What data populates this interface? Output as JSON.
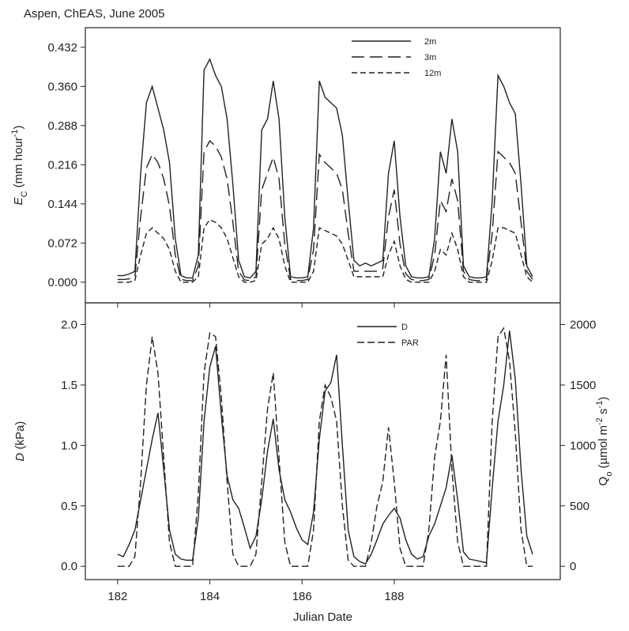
{
  "chart_data": [
    {
      "type": "line",
      "title": "Aspen, ChEAS, June 2005",
      "ylabel": [
        "E",
        "C",
        " (mm hour",
        "-1",
        ")"
      ],
      "xlim": [
        181.3,
        191.6
      ],
      "ylim": [
        -0.038,
        0.468
      ],
      "yticks": [
        {
          "value": 0,
          "label": "0.000"
        },
        0.072,
        0.144,
        0.216,
        0.288,
        {
          "value": 0.36,
          "label": "0.360"
        },
        0.432
      ],
      "legend": "upper right",
      "x": [
        182,
        182.125,
        182.25,
        182.375,
        182.5,
        182.625,
        182.75,
        182.875,
        183,
        183.125,
        183.25,
        183.375,
        183.5,
        183.625,
        183.75,
        183.875,
        184,
        184.125,
        184.25,
        184.375,
        184.5,
        184.625,
        184.75,
        184.875,
        185,
        185.125,
        185.25,
        185.375,
        185.5,
        185.625,
        185.75,
        185.875,
        186,
        186.125,
        186.25,
        186.375,
        186.5,
        186.625,
        186.75,
        186.875,
        187,
        187.125,
        187.25,
        187.375,
        187.5,
        187.625,
        187.75,
        187.875,
        188,
        188.125,
        188.25,
        188.375,
        188.5,
        188.625,
        188.75,
        188.875,
        189,
        189.125,
        189.25,
        189.375,
        189.5,
        189.625,
        189.75,
        189.875,
        190,
        190.125,
        190.25,
        190.375,
        190.5,
        190.625,
        190.75,
        190.875,
        191
      ],
      "series": [
        {
          "name": "2m",
          "color": "#222222",
          "dash": "solid",
          "values": [
            0.012,
            0.012,
            0.015,
            0.02,
            0.2,
            0.33,
            0.36,
            0.32,
            0.28,
            0.22,
            0.08,
            0.012,
            0.008,
            0.008,
            0.05,
            0.39,
            0.41,
            0.38,
            0.36,
            0.3,
            0.18,
            0.04,
            0.01,
            0.008,
            0.02,
            0.28,
            0.3,
            0.37,
            0.3,
            0.12,
            0.01,
            0.008,
            0.008,
            0.01,
            0.1,
            0.37,
            0.34,
            0.33,
            0.32,
            0.27,
            0.15,
            0.04,
            0.03,
            0.035,
            0.03,
            0.035,
            0.04,
            0.2,
            0.26,
            0.12,
            0.03,
            0.01,
            0.008,
            0.008,
            0.01,
            0.08,
            0.24,
            0.2,
            0.3,
            0.24,
            0.03,
            0.01,
            0.008,
            0.008,
            0.01,
            0.15,
            0.38,
            0.36,
            0.33,
            0.31,
            0.18,
            0.03,
            0.01
          ]
        },
        {
          "name": "3m",
          "color": "#222222",
          "dash": "long",
          "values": [
            0.005,
            0.005,
            0.006,
            0.01,
            0.12,
            0.21,
            0.235,
            0.22,
            0.19,
            0.14,
            0.05,
            0.005,
            0.003,
            0.003,
            0.03,
            0.24,
            0.26,
            0.25,
            0.23,
            0.19,
            0.11,
            0.02,
            0.004,
            0.003,
            0.01,
            0.17,
            0.2,
            0.23,
            0.19,
            0.07,
            0.005,
            0.003,
            0.003,
            0.005,
            0.06,
            0.235,
            0.22,
            0.21,
            0.2,
            0.17,
            0.09,
            0.02,
            0.02,
            0.02,
            0.02,
            0.02,
            0.025,
            0.12,
            0.17,
            0.07,
            0.015,
            0.005,
            0.003,
            0.003,
            0.005,
            0.05,
            0.15,
            0.13,
            0.19,
            0.15,
            0.02,
            0.005,
            0.003,
            0.003,
            0.005,
            0.09,
            0.24,
            0.23,
            0.22,
            0.2,
            0.11,
            0.02,
            0.005
          ]
        },
        {
          "name": "12m",
          "color": "#222222",
          "dash": "short",
          "values": [
            0,
            0,
            0,
            0.003,
            0.05,
            0.09,
            0.1,
            0.09,
            0.08,
            0.06,
            0.02,
            0,
            0,
            0,
            0.01,
            0.1,
            0.115,
            0.11,
            0.1,
            0.08,
            0.045,
            0.01,
            0,
            0,
            0.003,
            0.07,
            0.08,
            0.1,
            0.08,
            0.03,
            0,
            0,
            0,
            0,
            0.02,
            0.1,
            0.095,
            0.09,
            0.085,
            0.07,
            0.04,
            0.01,
            0.01,
            0.01,
            0.01,
            0.01,
            0.01,
            0.05,
            0.075,
            0.03,
            0.005,
            0,
            0,
            0,
            0,
            0.02,
            0.06,
            0.05,
            0.09,
            0.06,
            0.01,
            0,
            0,
            0,
            0,
            0.04,
            0.1,
            0.1,
            0.095,
            0.09,
            0.05,
            0.01,
            0
          ]
        }
      ]
    },
    {
      "type": "line",
      "xlabel": "Julian Date",
      "ylabel": [
        "D",
        " (kPa)"
      ],
      "y2label": [
        "Q",
        "o",
        " (µmol m",
        "-2",
        " s",
        "-1",
        ")"
      ],
      "xlim": [
        181.3,
        191.6
      ],
      "xticks": [
        182,
        184,
        186,
        188
      ],
      "ylim": [
        -0.11,
        2.18
      ],
      "yticks": [
        {
          "value": 0,
          "label": "0.0"
        },
        0.5,
        {
          "value": 1,
          "label": "1.0"
        },
        1.5,
        {
          "value": 2,
          "label": "2.0"
        }
      ],
      "y2lim": [
        -110,
        2180
      ],
      "y2ticks": [
        0,
        500,
        1000,
        1500,
        2000
      ],
      "legend": "upper right",
      "x": [
        182,
        182.125,
        182.25,
        182.375,
        182.5,
        182.625,
        182.75,
        182.875,
        183,
        183.125,
        183.25,
        183.375,
        183.5,
        183.625,
        183.75,
        183.875,
        184,
        184.125,
        184.25,
        184.375,
        184.5,
        184.625,
        184.75,
        184.875,
        185,
        185.125,
        185.25,
        185.375,
        185.5,
        185.625,
        185.75,
        185.875,
        186,
        186.125,
        186.25,
        186.375,
        186.5,
        186.625,
        186.75,
        186.875,
        187,
        187.125,
        187.25,
        187.375,
        187.5,
        187.625,
        187.75,
        187.875,
        188,
        188.125,
        188.25,
        188.375,
        188.5,
        188.625,
        188.75,
        188.875,
        189,
        189.125,
        189.25,
        189.375,
        189.5,
        189.625,
        189.75,
        189.875,
        190,
        190.125,
        190.25,
        190.375,
        190.5,
        190.625,
        190.75,
        190.875,
        191
      ],
      "series": [
        {
          "name": "D",
          "color": "#222222",
          "dash": "solid",
          "values": [
            0.1,
            0.08,
            0.18,
            0.3,
            0.55,
            0.8,
            1.05,
            1.27,
            0.8,
            0.3,
            0.1,
            0.06,
            0.05,
            0.05,
            0.4,
            1.2,
            1.65,
            1.82,
            1.25,
            0.75,
            0.55,
            0.48,
            0.32,
            0.15,
            0.25,
            0.55,
            0.95,
            1.22,
            0.8,
            0.55,
            0.45,
            0.32,
            0.22,
            0.18,
            0.45,
            1.05,
            1.45,
            1.52,
            1.75,
            1.0,
            0.3,
            0.08,
            0.04,
            0.02,
            0.1,
            0.22,
            0.35,
            0.42,
            0.48,
            0.4,
            0.22,
            0.1,
            0.06,
            0.08,
            0.25,
            0.35,
            0.5,
            0.65,
            0.92,
            0.55,
            0.12,
            0.06,
            0.05,
            0.04,
            0.03,
            0.65,
            1.2,
            1.5,
            1.95,
            1.55,
            0.8,
            0.25,
            0.1
          ]
        },
        {
          "name": "PAR",
          "color": "#222222",
          "dash": "mid",
          "axis": "y2",
          "values": [
            0,
            0,
            0,
            80,
            700,
            1500,
            1900,
            1600,
            900,
            200,
            0,
            0,
            0,
            0,
            600,
            1600,
            1930,
            1900,
            1400,
            700,
            100,
            0,
            0,
            0,
            100,
            700,
            1300,
            1600,
            900,
            200,
            0,
            0,
            0,
            0,
            300,
            1200,
            1500,
            1400,
            1200,
            500,
            50,
            0,
            0,
            0,
            200,
            500,
            700,
            1150,
            700,
            150,
            0,
            0,
            0,
            0,
            300,
            900,
            1200,
            1750,
            800,
            200,
            0,
            0,
            0,
            0,
            0,
            1200,
            1900,
            1970,
            1700,
            1100,
            300,
            0,
            0
          ]
        }
      ]
    }
  ]
}
